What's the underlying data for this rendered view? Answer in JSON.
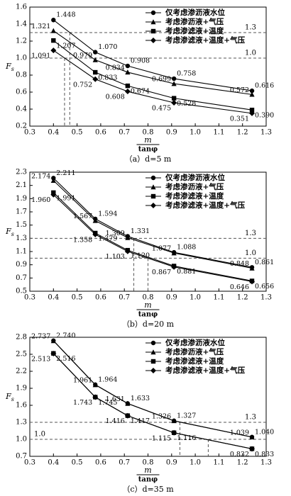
{
  "chart_data": [
    {
      "type": "line",
      "caption": "（a）d=5 m",
      "xlabel_top": "m",
      "xlabel_bottom": "tanφ",
      "ylabel": "F",
      "ylabel_sub": "s",
      "x": [
        0.4,
        0.577,
        0.714,
        0.91,
        1.24
      ],
      "xlim": [
        0.3,
        1.3
      ],
      "xticks": [
        0.3,
        0.4,
        0.5,
        0.6,
        0.7,
        0.8,
        0.9,
        {
          "value": 1,
          "label": "1.0"
        },
        1.1,
        1.2,
        1.3
      ],
      "ylim": [
        0.2,
        1.6
      ],
      "yticks": [
        0.2,
        0.4,
        0.6,
        0.8,
        {
          "value": 1,
          "label": "1.0"
        },
        1.2,
        1.4,
        1.6
      ],
      "ref_lines": [
        {
          "value": 1.3,
          "label": "1.3",
          "side": "right"
        },
        {
          "value": 1,
          "label": "1.0",
          "side": "right"
        }
      ],
      "vlines": [
        {
          "x": 0.447,
          "y": 1
        },
        {
          "x": 0.469,
          "y": 1.3
        }
      ],
      "series": [
        {
          "name": "仅考虑渗沥液水位",
          "marker": "circle",
          "color": "#000000",
          "values": [
            1.448,
            1.07,
            0.908,
            0.758,
            0.616
          ],
          "value_labels": [
            "1.448",
            "1.070",
            "0.908",
            "0.758",
            "0.616"
          ]
        },
        {
          "name": "考虑渗沥液+气压",
          "marker": "triangle",
          "color": "#000000",
          "values": [
            1.321,
            0.979,
            0.834,
            0.699,
            0.572
          ],
          "value_labels": [
            "1.321",
            "0.979",
            "0.834",
            "0.699",
            "0.572"
          ]
        },
        {
          "name": "考虑渗滤液+温度",
          "marker": "square",
          "color": "#000000",
          "values": [
            1.207,
            0.833,
            0.674,
            0.528,
            0.39
          ],
          "value_labels": [
            "1.207",
            "0.833",
            "0.674",
            "0.528",
            "0.390"
          ]
        },
        {
          "name": "考虑渗滤液+温度+气压",
          "marker": "diamond",
          "color": "#000000",
          "values": [
            1.091,
            0.752,
            0.608,
            0.475,
            0.351
          ],
          "value_labels": [
            "1.091",
            "0.752",
            "0.608",
            "0.475",
            "0.351"
          ]
        }
      ]
    },
    {
      "type": "line",
      "caption": "（b）d=20 m",
      "xlabel_top": "m",
      "xlabel_bottom": "tanφ",
      "ylabel": "F",
      "ylabel_sub": "s",
      "x": [
        0.4,
        0.577,
        0.714,
        0.91,
        1.24
      ],
      "xlim": [
        0.3,
        1.3
      ],
      "xticks": [
        0.3,
        0.4,
        0.5,
        0.6,
        0.7,
        0.8,
        0.9,
        {
          "value": 1,
          "label": "1.0"
        },
        1.1,
        1.2,
        1.3
      ],
      "ylim": [
        0.5,
        2.3
      ],
      "yticks": [
        0.5,
        0.7,
        0.9,
        1.1,
        1.3,
        1.5,
        1.7,
        1.9,
        2.1,
        2.3
      ],
      "ref_lines": [
        {
          "value": 1.3,
          "label": "1.3",
          "side": "right"
        },
        {
          "value": 1,
          "label": "1.0",
          "side": "right"
        }
      ],
      "vlines": [
        {
          "x": 0.74,
          "y": 1.3
        },
        {
          "x": 0.8,
          "y": 1
        }
      ],
      "series": [
        {
          "name": "仅考虑渗沥液水位",
          "marker": "circle",
          "color": "#000000",
          "values": [
            2.211,
            1.594,
            1.331,
            1.088,
            0.861
          ],
          "value_labels": [
            "2.211",
            "1.594",
            "1.331",
            "1.088",
            "0.861"
          ]
        },
        {
          "name": "考虑渗沥液+气压",
          "marker": "triangle",
          "color": "#000000",
          "values": [
            2.174,
            1.567,
            1.309,
            1.077,
            0.848
          ],
          "value_labels": [
            "2.174",
            "1.567",
            "1.309",
            "1.077",
            "0.848"
          ]
        },
        {
          "name": "考虑渗滤液+温度",
          "marker": "square",
          "color": "#000000",
          "values": [
            1.991,
            1.379,
            1.12,
            0.881,
            0.656
          ],
          "value_labels": [
            "1.991",
            "1.379",
            "1.120",
            "0.881",
            "0.656"
          ]
        },
        {
          "name": "考虑渗滤液+温度+气压",
          "marker": "diamond",
          "color": "#000000",
          "values": [
            1.96,
            1.358,
            1.103,
            0.867,
            0.646
          ],
          "value_labels": [
            "1.960",
            "1.358",
            "1.103",
            "0.867",
            "0.646"
          ]
        }
      ]
    },
    {
      "type": "line",
      "caption": "（c）d=35 m",
      "xlabel_top": "m",
      "xlabel_bottom": "tanφ",
      "ylabel": "F",
      "ylabel_sub": "s",
      "x": [
        0.4,
        0.577,
        0.714,
        0.91,
        1.24
      ],
      "xlim": [
        0.3,
        1.3
      ],
      "xticks": [
        0.3,
        0.4,
        0.5,
        0.6,
        0.7,
        0.8,
        0.9,
        {
          "value": 1,
          "label": "1.0"
        },
        1.1,
        1.2,
        1.3
      ],
      "ylim": [
        0.7,
        2.8
      ],
      "yticks": [
        0.7,
        {
          "value": 1,
          "label": "1.0"
        },
        1.3,
        1.6,
        1.9,
        2.2,
        2.5,
        2.8
      ],
      "ref_lines": [
        {
          "value": 1.3,
          "label": "1.3",
          "side": "right"
        },
        {
          "value": 1,
          "label": "1.0",
          "side": "left"
        }
      ],
      "vlines": [
        {
          "x": 0.935,
          "y": 1.3
        },
        {
          "x": 1.055,
          "y": 1
        }
      ],
      "series": [
        {
          "name": "仅考虑渗沥液水位",
          "marker": "circle",
          "color": "#000000",
          "values": [
            2.74,
            1.964,
            1.633,
            1.327,
            1.04
          ],
          "value_labels": [
            "2.740",
            "1.964",
            "1.633",
            "1.327",
            "1.040"
          ]
        },
        {
          "name": "考虑渗沥液+气压",
          "marker": "triangle",
          "color": "#000000",
          "values": [
            2.737,
            1.961,
            1.631,
            1.326,
            1.039
          ],
          "value_labels": [
            "2.737",
            "1.961",
            "1.631",
            "1.326",
            "1.039"
          ]
        },
        {
          "name": "考虑渗滤液+温度",
          "marker": "square",
          "color": "#000000",
          "values": [
            2.516,
            1.745,
            1.417,
            1.116,
            0.833
          ],
          "value_labels": [
            "2.516",
            "1.745",
            "1.417",
            "1.116",
            "0.833"
          ]
        },
        {
          "name": "考虑渗滤液+温度+气压",
          "marker": "diamond",
          "color": "#000000",
          "values": [
            2.513,
            1.743,
            1.416,
            1.115,
            0.832
          ],
          "value_labels": [
            "2.513",
            "1.743",
            "1.416",
            "1.115",
            "0.832"
          ]
        }
      ]
    }
  ]
}
